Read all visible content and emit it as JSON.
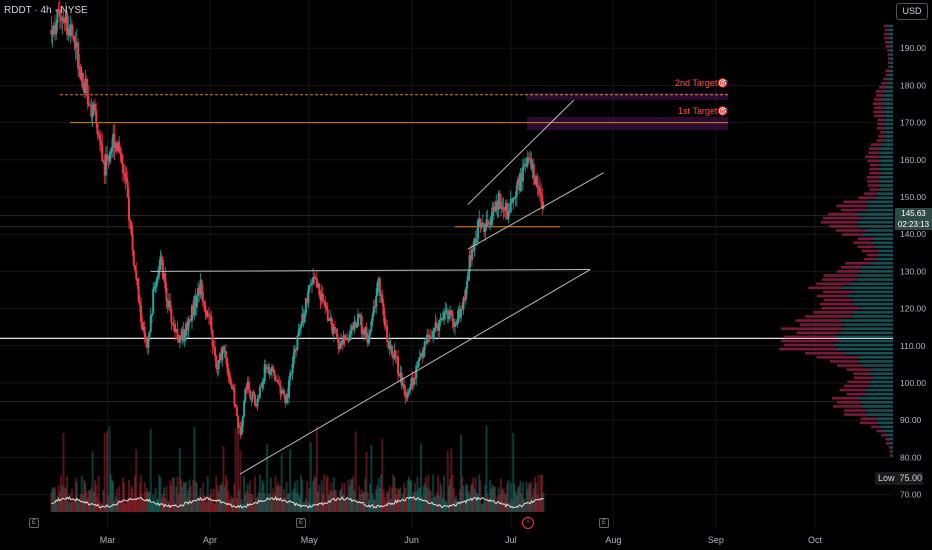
{
  "header": {
    "symbol": "RDDT · 4h · NYSE",
    "currency": "USD"
  },
  "colors": {
    "up": "#26a69a",
    "down": "#f23645",
    "profile_up": "#1b5e63",
    "profile_down": "#8a1f45",
    "target": "#ff5252",
    "white_line": "#e6e6e6"
  },
  "targets": {
    "first": "1st Target🎯",
    "second": "2nd Target🎯"
  },
  "price_scale": {
    "last_price": "145.63",
    "countdown": "02:23:13",
    "low_label": "Low",
    "low_value": "75.00"
  },
  "events": {
    "earnings_marker": "E",
    "dividend_marker": "⚡"
  },
  "chart_data": {
    "type": "candlestick",
    "symbol": "RDDT",
    "interval": "4h",
    "exchange": "NYSE",
    "currency": "USD",
    "x_ticks": [
      "Mar",
      "Apr",
      "May",
      "Jun",
      "Jul",
      "Aug",
      "Sep",
      "Oct"
    ],
    "y_ticks": [
      70,
      80,
      90,
      100,
      110,
      120,
      130,
      140,
      150,
      160,
      170,
      180,
      190
    ],
    "ylim": [
      65,
      200
    ],
    "last_price": 145.63,
    "low": 75.0,
    "targets": [
      {
        "label": "1st Target🎯",
        "price": 170
      },
      {
        "label": "2nd Target🎯",
        "price": 177.5
      }
    ],
    "horizontal_levels": [
      177.5,
      170,
      145,
      142,
      130,
      112,
      95
    ],
    "price_path": [
      {
        "date": "2025-02-12",
        "price": 195
      },
      {
        "date": "2025-02-15",
        "price": 200
      },
      {
        "date": "2025-02-19",
        "price": 192
      },
      {
        "date": "2025-02-22",
        "price": 180
      },
      {
        "date": "2025-02-25",
        "price": 172
      },
      {
        "date": "2025-02-28",
        "price": 158
      },
      {
        "date": "2025-03-03",
        "price": 166
      },
      {
        "date": "2025-03-05",
        "price": 162
      },
      {
        "date": "2025-03-07",
        "price": 150
      },
      {
        "date": "2025-03-09",
        "price": 132
      },
      {
        "date": "2025-03-11",
        "price": 118
      },
      {
        "date": "2025-03-13",
        "price": 108
      },
      {
        "date": "2025-03-15",
        "price": 125
      },
      {
        "date": "2025-03-17",
        "price": 133
      },
      {
        "date": "2025-03-20",
        "price": 118
      },
      {
        "date": "2025-03-23",
        "price": 111
      },
      {
        "date": "2025-03-26",
        "price": 118
      },
      {
        "date": "2025-03-29",
        "price": 126
      },
      {
        "date": "2025-04-01",
        "price": 116
      },
      {
        "date": "2025-04-03",
        "price": 103
      },
      {
        "date": "2025-04-05",
        "price": 110
      },
      {
        "date": "2025-04-08",
        "price": 97
      },
      {
        "date": "2025-04-10",
        "price": 86
      },
      {
        "date": "2025-04-12",
        "price": 100
      },
      {
        "date": "2025-04-15",
        "price": 94
      },
      {
        "date": "2025-04-18",
        "price": 105
      },
      {
        "date": "2025-04-21",
        "price": 101
      },
      {
        "date": "2025-04-24",
        "price": 95
      },
      {
        "date": "2025-04-27",
        "price": 110
      },
      {
        "date": "2025-04-30",
        "price": 121
      },
      {
        "date": "2025-05-02",
        "price": 128
      },
      {
        "date": "2025-05-04",
        "price": 125
      },
      {
        "date": "2025-05-07",
        "price": 117
      },
      {
        "date": "2025-05-10",
        "price": 110
      },
      {
        "date": "2025-05-13",
        "price": 113
      },
      {
        "date": "2025-05-16",
        "price": 117
      },
      {
        "date": "2025-05-19",
        "price": 111
      },
      {
        "date": "2025-05-22",
        "price": 128
      },
      {
        "date": "2025-05-24",
        "price": 114
      },
      {
        "date": "2025-05-27",
        "price": 107
      },
      {
        "date": "2025-05-30",
        "price": 97
      },
      {
        "date": "2025-06-02",
        "price": 102
      },
      {
        "date": "2025-06-05",
        "price": 111
      },
      {
        "date": "2025-06-08",
        "price": 114
      },
      {
        "date": "2025-06-11",
        "price": 120
      },
      {
        "date": "2025-06-14",
        "price": 116
      },
      {
        "date": "2025-06-17",
        "price": 122
      },
      {
        "date": "2025-06-19",
        "price": 136
      },
      {
        "date": "2025-06-22",
        "price": 144
      },
      {
        "date": "2025-06-24",
        "price": 141
      },
      {
        "date": "2025-06-27",
        "price": 149
      },
      {
        "date": "2025-06-30",
        "price": 146
      },
      {
        "date": "2025-07-03",
        "price": 153
      },
      {
        "date": "2025-07-06",
        "price": 160
      },
      {
        "date": "2025-07-08",
        "price": 156
      },
      {
        "date": "2025-07-10",
        "price": 148
      },
      {
        "date": "2025-07-11",
        "price": 145.63
      }
    ],
    "trendlines": [
      {
        "from": {
          "date": "2025-04-10",
          "price": 75.5
        },
        "to": {
          "date": "2025-07-25",
          "price": 130.5
        }
      },
      {
        "from": {
          "date": "2025-03-14",
          "price": 130
        },
        "to": {
          "date": "2025-07-25",
          "price": 130.5
        }
      },
      {
        "from": {
          "date": "2025-06-18",
          "price": 136
        },
        "to": {
          "date": "2025-07-29",
          "price": 156.5
        }
      },
      {
        "from": {
          "date": "2025-06-18",
          "price": 148
        },
        "to": {
          "date": "2025-07-20",
          "price": 176
        }
      }
    ]
  }
}
